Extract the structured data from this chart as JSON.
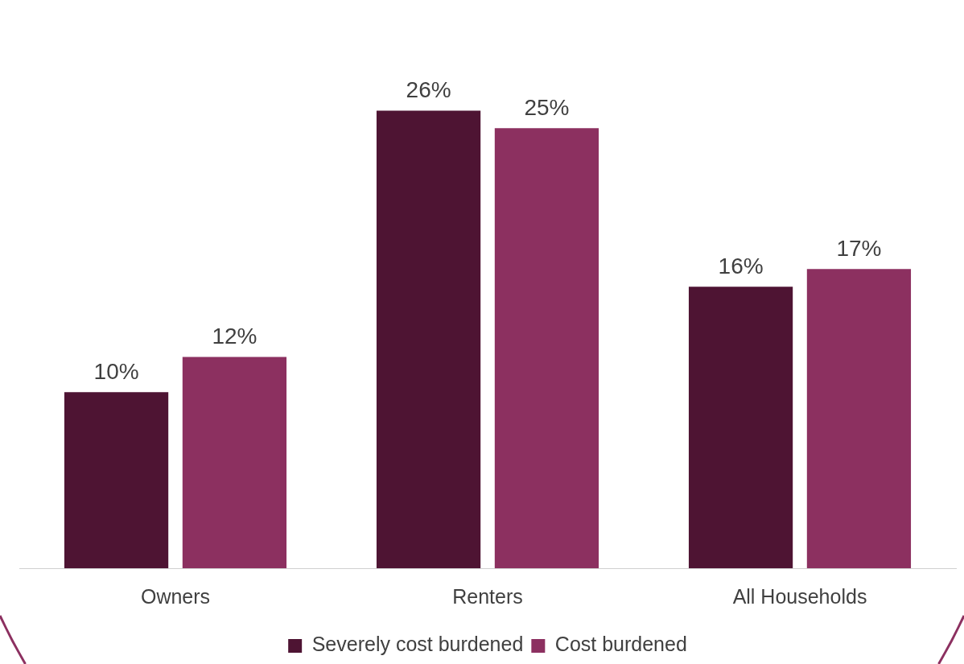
{
  "chart_data": {
    "type": "bar",
    "categories": [
      "Owners",
      "Renters",
      "All Households"
    ],
    "series": [
      {
        "name": "Severely cost burdened",
        "color": "#4e1433",
        "values": [
          10,
          26,
          16
        ],
        "value_labels": [
          "10%",
          "26%",
          "16%"
        ]
      },
      {
        "name": "Cost burdened",
        "color": "#8c3060",
        "values": [
          12,
          25,
          17
        ],
        "value_labels": [
          "12%",
          "25%",
          "17%"
        ]
      }
    ],
    "legend": "bottom",
    "grid": false,
    "tick_labels": "x"
  }
}
